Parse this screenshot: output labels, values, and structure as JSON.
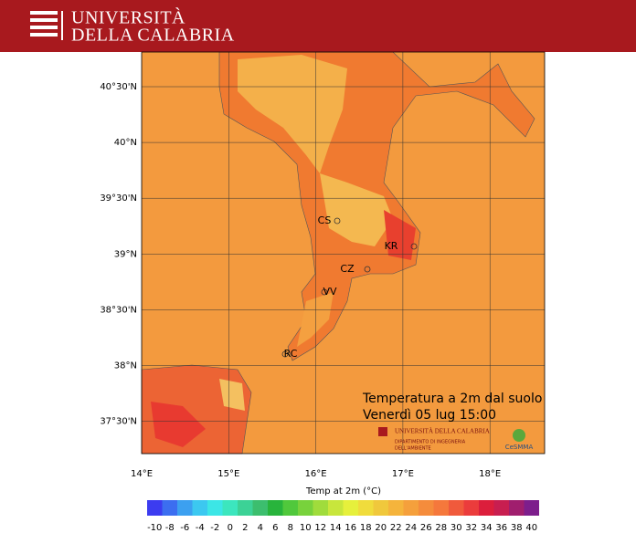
{
  "header": {
    "title_lines": [
      "UNIVERSITÀ",
      "DELLA CALABRIA"
    ]
  },
  "map": {
    "lat_labels": [
      "40°30'N",
      "40°N",
      "39°30'N",
      "39°N",
      "38°30'N",
      "38°N",
      "37°30'N"
    ],
    "lon_labels": [
      "14°E",
      "15°E",
      "16°E",
      "17°E",
      "18°E"
    ],
    "cities": [
      "CS",
      "KR",
      "CZ",
      "VV",
      "RC"
    ],
    "title_lines": [
      "Temperatura a 2m dal suolo",
      "Venerdì 05 lug 15:00"
    ],
    "logo_lines": [
      "UNIVERSITÀ DELLA CALABRIA",
      "DIPARTIMENTO DI INGEGNERIA",
      "DELL'AMBIENTE"
    ],
    "logo2": "CeSMMA"
  },
  "colorbar": {
    "title": "Temp at 2m  (°C)",
    "ticks": [
      -10,
      -8,
      -6,
      -4,
      -2,
      0,
      2,
      4,
      6,
      8,
      10,
      12,
      14,
      16,
      18,
      20,
      22,
      24,
      26,
      28,
      30,
      32,
      34,
      36,
      38,
      40
    ],
    "colors": [
      "#3c3cf0",
      "#3c6ef0",
      "#3ca0f0",
      "#3cc8f0",
      "#3ce6e6",
      "#3ce6be",
      "#3cd296",
      "#3cbe6e",
      "#28b43c",
      "#50c83c",
      "#78d23c",
      "#a0dc3c",
      "#c8e63c",
      "#e6f03c",
      "#f0dc3c",
      "#f0c83c",
      "#f5b43c",
      "#f5a03c",
      "#f58c3c",
      "#f5783c",
      "#f05a3c",
      "#eb3c3c",
      "#dc1e3c",
      "#c81e50",
      "#a01e6e",
      "#7d1e8c"
    ]
  }
}
